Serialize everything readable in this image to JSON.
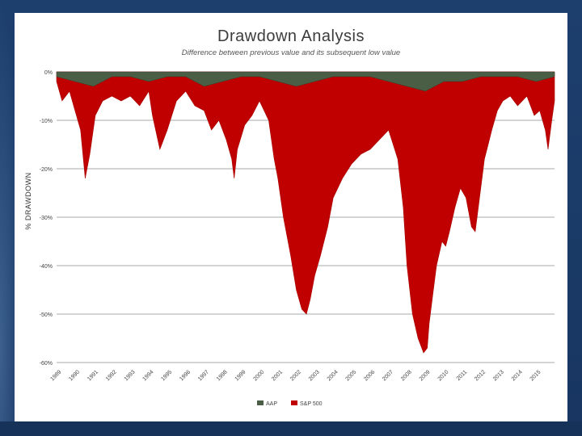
{
  "chart_data": {
    "type": "area",
    "title": "Drawdown Analysis",
    "subtitle": "Difference between previous value and its subsequent low value",
    "ylabel": "% DRAWDOWN",
    "xlabel": "",
    "ylim": [
      -60,
      0
    ],
    "yticks": [
      0,
      -10,
      -20,
      -30,
      -40,
      -50,
      -60
    ],
    "ytick_labels": [
      "0%",
      "-10%",
      "-20%",
      "-30%",
      "-40%",
      "-50%",
      "-60%"
    ],
    "xlim": [
      1989,
      2016
    ],
    "xtick_labels": [
      "1989",
      "1990",
      "1991",
      "1992",
      "1993",
      "1994",
      "1995",
      "1996",
      "1997",
      "1998",
      "1999",
      "2000",
      "2001",
      "2002",
      "2003",
      "2004",
      "2005",
      "2006",
      "2007",
      "2008",
      "2009",
      "2010",
      "2011",
      "2012",
      "2013",
      "2014",
      "2015"
    ],
    "grid": true,
    "legend_position": "bottom",
    "series": [
      {
        "name": "AAP",
        "color": "#4a5d45",
        "x": [
          1989.0,
          1990.0,
          1991.0,
          1992.0,
          1993.0,
          1994.0,
          1995.0,
          1996.0,
          1997.0,
          1998.0,
          1999.0,
          2000.0,
          2001.0,
          2002.0,
          2003.0,
          2004.0,
          2005.0,
          2006.0,
          2007.0,
          2008.0,
          2009.0,
          2010.0,
          2011.0,
          2012.0,
          2013.0,
          2014.0,
          2015.0,
          2016.0
        ],
        "values": [
          -1,
          -2,
          -3,
          -1,
          -1,
          -2,
          -1,
          -1,
          -3,
          -2,
          -1,
          -1,
          -2,
          -3,
          -2,
          -1,
          -1,
          -1,
          -2,
          -3,
          -4,
          -2,
          -2,
          -1,
          -1,
          -1,
          -2,
          -1
        ]
      },
      {
        "name": "S&P 500",
        "color": "#c00000",
        "x": [
          1989.0,
          1989.3,
          1989.7,
          1990.0,
          1990.3,
          1990.55,
          1990.8,
          1991.1,
          1991.5,
          1992.0,
          1992.5,
          1993.0,
          1993.5,
          1994.0,
          1994.2,
          1994.6,
          1995.0,
          1995.5,
          1996.0,
          1996.5,
          1997.0,
          1997.4,
          1997.8,
          1998.2,
          1998.5,
          1998.63,
          1998.8,
          1999.2,
          1999.6,
          2000.0,
          2000.5,
          2000.8,
          2001.0,
          2001.3,
          2001.7,
          2002.0,
          2002.3,
          2002.55,
          2002.75,
          2003.0,
          2003.3,
          2003.7,
          2004.0,
          2004.5,
          2005.0,
          2005.5,
          2006.0,
          2006.5,
          2007.0,
          2007.5,
          2007.8,
          2008.0,
          2008.3,
          2008.6,
          2008.9,
          2009.1,
          2009.2,
          2009.4,
          2009.6,
          2009.9,
          2010.1,
          2010.3,
          2010.6,
          2010.9,
          2011.2,
          2011.5,
          2011.7,
          2011.9,
          2012.2,
          2012.4,
          2012.6,
          2012.9,
          2013.2,
          2013.6,
          2014.0,
          2014.5,
          2014.9,
          2015.2,
          2015.5,
          2015.65,
          2015.85,
          2016.0
        ],
        "values": [
          -2,
          -6,
          -4,
          -8,
          -12,
          -22,
          -17,
          -9,
          -6,
          -5,
          -6,
          -5,
          -7,
          -4,
          -9,
          -16,
          -12,
          -6,
          -4,
          -7,
          -8,
          -12,
          -10,
          -14,
          -18,
          -22,
          -16,
          -11,
          -9,
          -6,
          -10,
          -18,
          -22,
          -30,
          -38,
          -45,
          -49,
          -50,
          -47,
          -42,
          -38,
          -32,
          -26,
          -22,
          -19,
          -17,
          -16,
          -14,
          -12,
          -18,
          -28,
          -40,
          -50,
          -55,
          -58,
          -57,
          -52,
          -46,
          -40,
          -35,
          -36,
          -33,
          -28,
          -24,
          -26,
          -32,
          -33,
          -27,
          -18,
          -15,
          -12,
          -8,
          -6,
          -5,
          -7,
          -5,
          -9,
          -8,
          -12,
          -16,
          -10,
          -6
        ]
      }
    ]
  }
}
